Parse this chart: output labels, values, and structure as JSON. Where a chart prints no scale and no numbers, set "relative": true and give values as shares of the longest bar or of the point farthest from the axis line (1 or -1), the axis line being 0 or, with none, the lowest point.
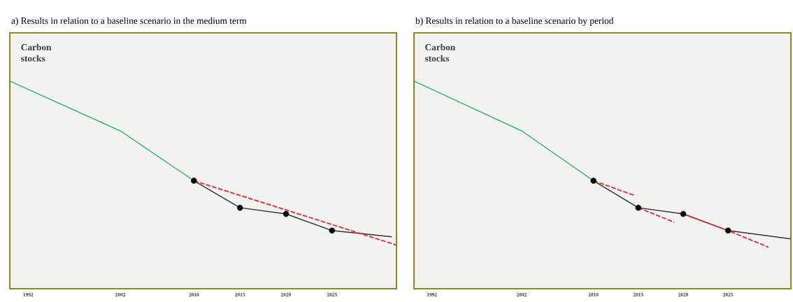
{
  "chart_data": [
    {
      "type": "line",
      "title": "a) Results in relation to a baseline scenario in the medium term",
      "relative": true,
      "xlim": [
        1990,
        2032
      ],
      "xticks": [
        1992,
        2002,
        2010,
        2015,
        2020,
        2025
      ],
      "annotations": [
        "Carbon stocks"
      ],
      "series": [
        {
          "type": "line",
          "color": "#3cb878",
          "line_style": "solid",
          "marker": "none",
          "x": [
            1990,
            2002,
            2010
          ],
          "values": [
            1,
            0.76,
            0.52
          ]
        },
        {
          "type": "line",
          "color": "#333333",
          "line_style": "solid",
          "marker": "none",
          "x": [
            2010,
            2015,
            2020,
            2025,
            2031.5
          ],
          "values": [
            0.52,
            0.39,
            0.36,
            0.28,
            0.25
          ]
        },
        {
          "type": "line",
          "color": "#e8303a",
          "line_style": "dashed",
          "marker": "none",
          "x": [
            2010,
            2032
          ],
          "values": [
            0.52,
            0.21
          ]
        },
        {
          "type": "scatter",
          "color": "#000000",
          "marker": "circle",
          "x": [
            2010,
            2015,
            2020,
            2025
          ],
          "values": [
            0.52,
            0.39,
            0.36,
            0.28
          ]
        }
      ]
    },
    {
      "type": "line",
      "title": "b) Results in relation to a baseline scenario by period",
      "relative": true,
      "xlim": [
        1990,
        2032
      ],
      "xticks": [
        1992,
        2002,
        2010,
        2015,
        2020,
        2025
      ],
      "annotations": [
        "Carbon stocks"
      ],
      "series": [
        {
          "type": "line",
          "color": "#3cb878",
          "line_style": "solid",
          "marker": "none",
          "x": [
            1990,
            2002,
            2010
          ],
          "values": [
            1,
            0.76,
            0.52
          ]
        },
        {
          "type": "line",
          "color": "#333333",
          "line_style": "solid",
          "marker": "none",
          "x": [
            2010,
            2015,
            2020,
            2025,
            2032
          ],
          "values": [
            0.52,
            0.39,
            0.36,
            0.28,
            0.24
          ]
        },
        {
          "type": "line",
          "color": "#e8303a",
          "line_style": "dashed",
          "marker": "none",
          "x": [
            2010,
            2014.5
          ],
          "values": [
            0.52,
            0.45
          ]
        },
        {
          "type": "line",
          "color": "#e8303a",
          "line_style": "dashed",
          "marker": "none",
          "x": [
            2015,
            2019
          ],
          "values": [
            0.39,
            0.32
          ]
        },
        {
          "type": "line",
          "color": "#e8303a",
          "line_style": "dashed",
          "marker": "none",
          "x": [
            2020,
            2025,
            2029.5
          ],
          "values": [
            0.36,
            0.28,
            0.2
          ]
        },
        {
          "type": "scatter",
          "color": "#000000",
          "marker": "circle",
          "x": [
            2010,
            2015,
            2020,
            2025
          ],
          "values": [
            0.52,
            0.39,
            0.36,
            0.28
          ]
        }
      ]
    }
  ]
}
